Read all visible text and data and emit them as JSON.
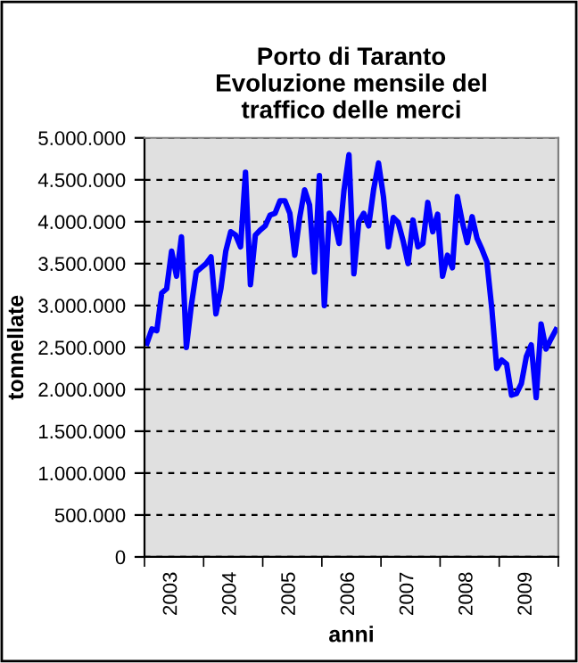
{
  "chart_data": {
    "type": "line",
    "title": "Porto di Taranto\nEvoluzione mensile del\ntraffico delle merci",
    "xlabel": "anni",
    "ylabel": "tonnellate",
    "categories": [
      null,
      null,
      null,
      null,
      null,
      "2003",
      null,
      null,
      null,
      null,
      null,
      null,
      null,
      null,
      null,
      null,
      null,
      "2004",
      null,
      null,
      null,
      null,
      null,
      null,
      null,
      null,
      null,
      null,
      null,
      "2005",
      null,
      null,
      null,
      null,
      null,
      null,
      null,
      null,
      null,
      null,
      null,
      "2006",
      null,
      null,
      null,
      null,
      null,
      null,
      null,
      null,
      null,
      null,
      null,
      "2007",
      null,
      null,
      null,
      null,
      null,
      null,
      null,
      null,
      null,
      null,
      null,
      "2008",
      null,
      null,
      null,
      null,
      null,
      null,
      null,
      null,
      null,
      null,
      null,
      "2009",
      null,
      null,
      null,
      null,
      null,
      null
    ],
    "series": [
      {
        "color": "#0000ff",
        "values": [
          2550000,
          2720000,
          2700000,
          3150000,
          3200000,
          3650000,
          3350000,
          3820000,
          2500000,
          3000000,
          3400000,
          3450000,
          3500000,
          3580000,
          2900000,
          3200000,
          3650000,
          3880000,
          3840000,
          3700000,
          4590000,
          3250000,
          3840000,
          3900000,
          3950000,
          4080000,
          4100000,
          4250000,
          4250000,
          4100000,
          3600000,
          4050000,
          4380000,
          4200000,
          3400000,
          4550000,
          3000000,
          4100000,
          4020000,
          3740000,
          4380000,
          4800000,
          3380000,
          4000000,
          4100000,
          3950000,
          4380000,
          4700000,
          4300000,
          3700000,
          4050000,
          3990000,
          3770000,
          3500000,
          4020000,
          3700000,
          3740000,
          4230000,
          3880000,
          4090000,
          3350000,
          3600000,
          3450000,
          4300000,
          4000000,
          3750000,
          4060000,
          3800000,
          3670000,
          3520000,
          2960000,
          2250000,
          2350000,
          2300000,
          1930000,
          1950000,
          2070000,
          2390000,
          2530000,
          1900000,
          2780000,
          2480000,
          2600000,
          2710000
        ]
      }
    ],
    "ylim": [
      0,
      5000000
    ],
    "yticks": [
      {
        "value": 0,
        "label": "0"
      },
      {
        "value": 500000,
        "label": "500.000"
      },
      {
        "value": 1000000,
        "label": "1.000.000"
      },
      {
        "value": 1500000,
        "label": "1.500.000"
      },
      {
        "value": 2000000,
        "label": "2.000.000"
      },
      {
        "value": 2500000,
        "label": "2.500.000"
      },
      {
        "value": 3000000,
        "label": "3.000.000"
      },
      {
        "value": 3500000,
        "label": "3.500.000"
      },
      {
        "value": 4000000,
        "label": "4.000.000"
      },
      {
        "value": 4500000,
        "label": "4.500.000"
      },
      {
        "value": 5000000,
        "label": "5.000.000"
      }
    ],
    "grid": "y",
    "line_style": "solid",
    "marker": "none"
  }
}
